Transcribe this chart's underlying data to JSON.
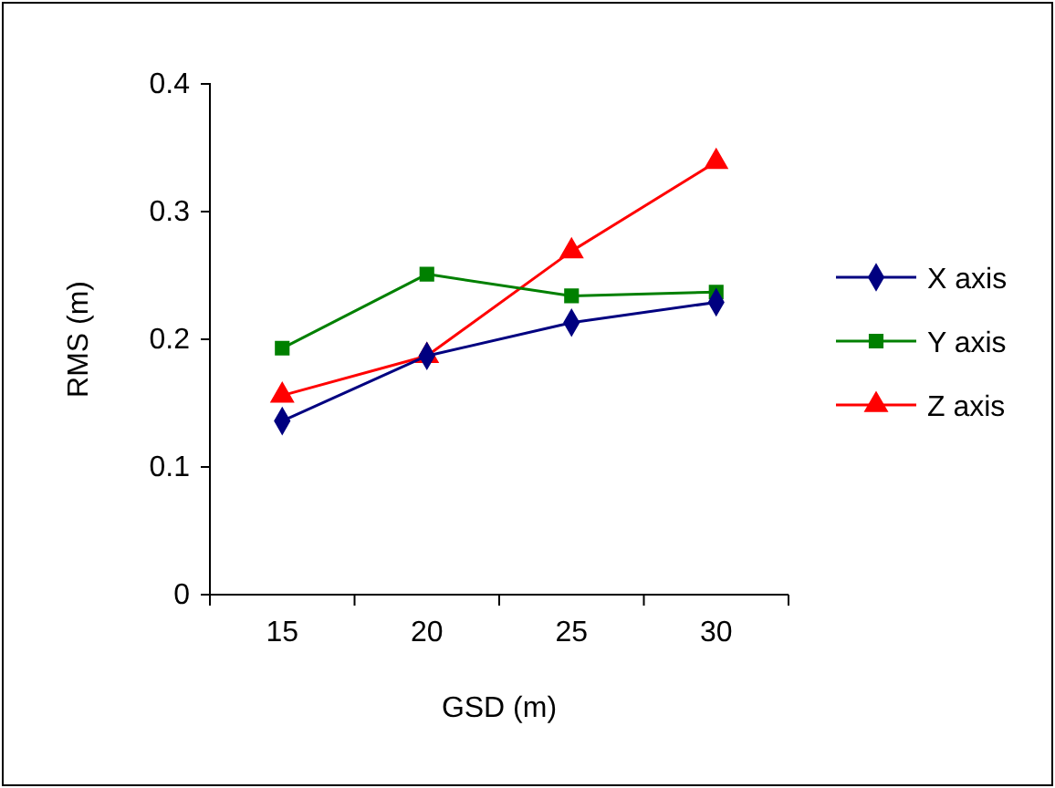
{
  "chart_data": {
    "type": "line",
    "xlabel": "GSD (m)",
    "ylabel": "RMS (m)",
    "categories": [
      "15",
      "20",
      "25",
      "30"
    ],
    "ylim": [
      0,
      0.4
    ],
    "yticks": [
      0,
      0.1,
      0.2,
      0.3,
      0.4
    ],
    "grid": false,
    "legend": "right",
    "series": [
      {
        "name": "X axis",
        "color": "#000080",
        "marker": "diamond",
        "values": [
          0.136,
          0.187,
          0.213,
          0.229
        ]
      },
      {
        "name": "Y axis",
        "color": "#008000",
        "marker": "square",
        "values": [
          0.193,
          0.251,
          0.234,
          0.237
        ]
      },
      {
        "name": "Z axis",
        "color": "#ff0000",
        "marker": "triangle",
        "values": [
          0.156,
          0.187,
          0.269,
          0.339
        ]
      }
    ]
  }
}
